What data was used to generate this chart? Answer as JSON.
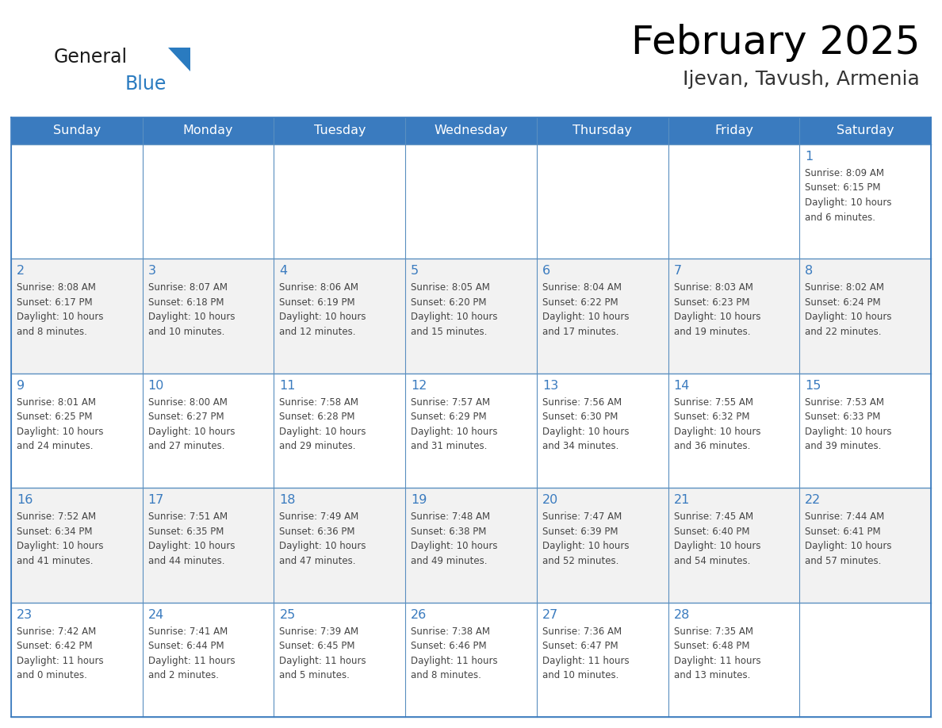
{
  "title": "February 2025",
  "subtitle": "Ijevan, Tavush, Armenia",
  "days_of_week": [
    "Sunday",
    "Monday",
    "Tuesday",
    "Wednesday",
    "Thursday",
    "Friday",
    "Saturday"
  ],
  "header_bg": "#3a7bbf",
  "header_text_color": "#ffffff",
  "cell_bg_white": "#ffffff",
  "cell_bg_gray": "#f2f2f2",
  "border_color": "#3a7bbf",
  "row_border_color": "#5a8fc0",
  "text_color": "#444444",
  "day_number_color": "#3a7bbf",
  "logo_general_color": "#1a1a1a",
  "logo_blue_color": "#2a7bc0",
  "calendar_data": [
    [
      {
        "day": null,
        "info": null
      },
      {
        "day": null,
        "info": null
      },
      {
        "day": null,
        "info": null
      },
      {
        "day": null,
        "info": null
      },
      {
        "day": null,
        "info": null
      },
      {
        "day": null,
        "info": null
      },
      {
        "day": 1,
        "info": "Sunrise: 8:09 AM\nSunset: 6:15 PM\nDaylight: 10 hours\nand 6 minutes."
      }
    ],
    [
      {
        "day": 2,
        "info": "Sunrise: 8:08 AM\nSunset: 6:17 PM\nDaylight: 10 hours\nand 8 minutes."
      },
      {
        "day": 3,
        "info": "Sunrise: 8:07 AM\nSunset: 6:18 PM\nDaylight: 10 hours\nand 10 minutes."
      },
      {
        "day": 4,
        "info": "Sunrise: 8:06 AM\nSunset: 6:19 PM\nDaylight: 10 hours\nand 12 minutes."
      },
      {
        "day": 5,
        "info": "Sunrise: 8:05 AM\nSunset: 6:20 PM\nDaylight: 10 hours\nand 15 minutes."
      },
      {
        "day": 6,
        "info": "Sunrise: 8:04 AM\nSunset: 6:22 PM\nDaylight: 10 hours\nand 17 minutes."
      },
      {
        "day": 7,
        "info": "Sunrise: 8:03 AM\nSunset: 6:23 PM\nDaylight: 10 hours\nand 19 minutes."
      },
      {
        "day": 8,
        "info": "Sunrise: 8:02 AM\nSunset: 6:24 PM\nDaylight: 10 hours\nand 22 minutes."
      }
    ],
    [
      {
        "day": 9,
        "info": "Sunrise: 8:01 AM\nSunset: 6:25 PM\nDaylight: 10 hours\nand 24 minutes."
      },
      {
        "day": 10,
        "info": "Sunrise: 8:00 AM\nSunset: 6:27 PM\nDaylight: 10 hours\nand 27 minutes."
      },
      {
        "day": 11,
        "info": "Sunrise: 7:58 AM\nSunset: 6:28 PM\nDaylight: 10 hours\nand 29 minutes."
      },
      {
        "day": 12,
        "info": "Sunrise: 7:57 AM\nSunset: 6:29 PM\nDaylight: 10 hours\nand 31 minutes."
      },
      {
        "day": 13,
        "info": "Sunrise: 7:56 AM\nSunset: 6:30 PM\nDaylight: 10 hours\nand 34 minutes."
      },
      {
        "day": 14,
        "info": "Sunrise: 7:55 AM\nSunset: 6:32 PM\nDaylight: 10 hours\nand 36 minutes."
      },
      {
        "day": 15,
        "info": "Sunrise: 7:53 AM\nSunset: 6:33 PM\nDaylight: 10 hours\nand 39 minutes."
      }
    ],
    [
      {
        "day": 16,
        "info": "Sunrise: 7:52 AM\nSunset: 6:34 PM\nDaylight: 10 hours\nand 41 minutes."
      },
      {
        "day": 17,
        "info": "Sunrise: 7:51 AM\nSunset: 6:35 PM\nDaylight: 10 hours\nand 44 minutes."
      },
      {
        "day": 18,
        "info": "Sunrise: 7:49 AM\nSunset: 6:36 PM\nDaylight: 10 hours\nand 47 minutes."
      },
      {
        "day": 19,
        "info": "Sunrise: 7:48 AM\nSunset: 6:38 PM\nDaylight: 10 hours\nand 49 minutes."
      },
      {
        "day": 20,
        "info": "Sunrise: 7:47 AM\nSunset: 6:39 PM\nDaylight: 10 hours\nand 52 minutes."
      },
      {
        "day": 21,
        "info": "Sunrise: 7:45 AM\nSunset: 6:40 PM\nDaylight: 10 hours\nand 54 minutes."
      },
      {
        "day": 22,
        "info": "Sunrise: 7:44 AM\nSunset: 6:41 PM\nDaylight: 10 hours\nand 57 minutes."
      }
    ],
    [
      {
        "day": 23,
        "info": "Sunrise: 7:42 AM\nSunset: 6:42 PM\nDaylight: 11 hours\nand 0 minutes."
      },
      {
        "day": 24,
        "info": "Sunrise: 7:41 AM\nSunset: 6:44 PM\nDaylight: 11 hours\nand 2 minutes."
      },
      {
        "day": 25,
        "info": "Sunrise: 7:39 AM\nSunset: 6:45 PM\nDaylight: 11 hours\nand 5 minutes."
      },
      {
        "day": 26,
        "info": "Sunrise: 7:38 AM\nSunset: 6:46 PM\nDaylight: 11 hours\nand 8 minutes."
      },
      {
        "day": 27,
        "info": "Sunrise: 7:36 AM\nSunset: 6:47 PM\nDaylight: 11 hours\nand 10 minutes."
      },
      {
        "day": 28,
        "info": "Sunrise: 7:35 AM\nSunset: 6:48 PM\nDaylight: 11 hours\nand 13 minutes."
      },
      {
        "day": null,
        "info": null
      }
    ]
  ]
}
